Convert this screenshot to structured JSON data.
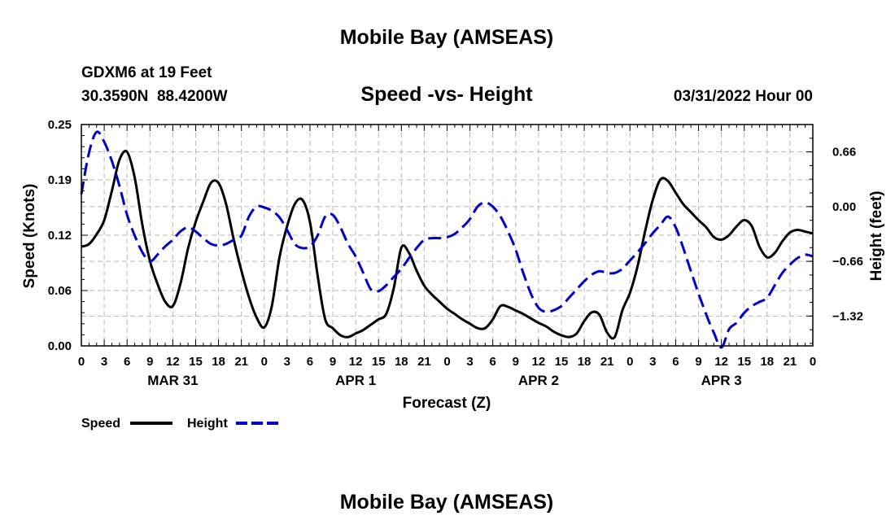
{
  "chart_data": {
    "type": "line",
    "title": "Mobile Bay (AMSEAS)",
    "footer_title": "Mobile Bay (AMSEAS)",
    "station": "GDXM6 at 19 Feet",
    "location": "30.3590N  88.4200W",
    "subtitle": "Speed -vs- Height",
    "datetime": "03/31/2022 Hour 00",
    "xlabel": "Forecast (Z)",
    "ylabel_left": "Speed (Knots)",
    "ylabel_right": "Height (feet)",
    "x_range_hours": [
      0,
      96
    ],
    "ylim_left": [
      0,
      0.25
    ],
    "ylim_right": [
      -1.68,
      0.99
    ],
    "yticks_left": [
      "0.00",
      "0.06",
      "0.12",
      "0.19",
      "0.25"
    ],
    "yticks_left_values": [
      0,
      0.0625,
      0.125,
      0.1875,
      0.25
    ],
    "yticks_right": [
      "0.66",
      "0.00",
      "−0.66",
      "−1.32"
    ],
    "yticks_right_values": [
      0.66,
      0,
      -0.66,
      -1.32
    ],
    "xticks": [
      "0",
      "3",
      "6",
      "9",
      "12",
      "15",
      "18",
      "21",
      "0",
      "3",
      "6",
      "9",
      "12",
      "15",
      "18",
      "21",
      "0",
      "3",
      "6",
      "9",
      "12",
      "15",
      "18",
      "21",
      "0",
      "3",
      "6",
      "9",
      "12",
      "15",
      "18",
      "21",
      "0"
    ],
    "day_labels": [
      {
        "label": "MAR 31",
        "hour": 12
      },
      {
        "label": "APR 1",
        "hour": 36
      },
      {
        "label": "APR 2",
        "hour": 60
      },
      {
        "label": "APR 3",
        "hour": 84
      }
    ],
    "series": [
      {
        "name": "Speed",
        "axis": "left",
        "color": "#000000",
        "dash": "solid",
        "x": [
          0,
          1,
          2,
          3,
          4,
          5,
          6,
          7,
          8,
          9,
          10,
          11,
          12,
          13,
          14,
          15,
          16,
          17,
          18,
          19,
          20,
          21,
          22,
          23,
          24,
          25,
          26,
          27,
          28,
          29,
          30,
          31,
          32,
          33,
          34,
          35,
          36,
          37,
          38,
          39,
          40,
          41,
          42,
          43,
          44,
          45,
          46,
          47,
          48,
          49,
          50,
          51,
          52,
          53,
          54,
          55,
          56,
          57,
          58,
          59,
          60,
          61,
          62,
          63,
          64,
          65,
          66,
          67,
          68,
          69,
          70,
          71,
          72,
          73,
          74,
          75,
          76,
          77,
          78,
          79,
          80,
          81,
          82,
          83,
          84,
          85,
          86,
          87,
          88,
          89,
          90,
          91,
          92,
          93,
          94,
          95,
          96
        ],
        "values": [
          0.112,
          0.115,
          0.126,
          0.142,
          0.175,
          0.21,
          0.219,
          0.19,
          0.137,
          0.096,
          0.07,
          0.05,
          0.045,
          0.07,
          0.11,
          0.14,
          0.163,
          0.184,
          0.184,
          0.16,
          0.12,
          0.085,
          0.055,
          0.032,
          0.021,
          0.045,
          0.1,
          0.135,
          0.16,
          0.165,
          0.14,
          0.08,
          0.03,
          0.02,
          0.012,
          0.01,
          0.014,
          0.018,
          0.024,
          0.03,
          0.036,
          0.065,
          0.111,
          0.105,
          0.085,
          0.068,
          0.058,
          0.05,
          0.042,
          0.036,
          0.03,
          0.025,
          0.02,
          0.02,
          0.03,
          0.045,
          0.044,
          0.04,
          0.036,
          0.031,
          0.026,
          0.022,
          0.016,
          0.012,
          0.01,
          0.014,
          0.028,
          0.038,
          0.035,
          0.015,
          0.01,
          0.04,
          0.06,
          0.09,
          0.13,
          0.165,
          0.188,
          0.186,
          0.173,
          0.16,
          0.151,
          0.142,
          0.134,
          0.123,
          0.12,
          0.125,
          0.135,
          0.142,
          0.135,
          0.112,
          0.1,
          0.105,
          0.118,
          0.128,
          0.131,
          0.129,
          0.127
        ]
      },
      {
        "name": "Height",
        "axis": "right",
        "color": "#0000cc",
        "dash": "dashed",
        "x": [
          0,
          1,
          2,
          3,
          4,
          5,
          6,
          7,
          8,
          9,
          10,
          11,
          12,
          13,
          14,
          15,
          16,
          17,
          18,
          19,
          20,
          21,
          22,
          23,
          24,
          25,
          26,
          27,
          28,
          29,
          30,
          31,
          32,
          33,
          34,
          35,
          36,
          37,
          38,
          39,
          40,
          41,
          42,
          43,
          44,
          45,
          46,
          47,
          48,
          49,
          50,
          51,
          52,
          53,
          54,
          55,
          56,
          57,
          58,
          59,
          60,
          61,
          62,
          63,
          64,
          65,
          66,
          67,
          68,
          69,
          70,
          71,
          72,
          73,
          74,
          75,
          76,
          77,
          78,
          79,
          80,
          81,
          82,
          83,
          84,
          85,
          86,
          87,
          88,
          89,
          90,
          91,
          92,
          93,
          94,
          95,
          96
        ],
        "values": [
          0.15,
          0.65,
          0.9,
          0.78,
          0.55,
          0.25,
          -0.1,
          -0.35,
          -0.55,
          -0.66,
          -0.58,
          -0.48,
          -0.4,
          -0.3,
          -0.25,
          -0.3,
          -0.38,
          -0.45,
          -0.47,
          -0.45,
          -0.4,
          -0.35,
          -0.12,
          0.0,
          -0.01,
          -0.05,
          -0.13,
          -0.28,
          -0.45,
          -0.5,
          -0.48,
          -0.35,
          -0.12,
          -0.1,
          -0.25,
          -0.45,
          -0.6,
          -0.8,
          -1.0,
          -1.02,
          -0.95,
          -0.85,
          -0.75,
          -0.62,
          -0.5,
          -0.4,
          -0.38,
          -0.38,
          -0.37,
          -0.33,
          -0.25,
          -0.15,
          0.0,
          0.05,
          0.0,
          -0.12,
          -0.3,
          -0.52,
          -0.8,
          -1.05,
          -1.22,
          -1.27,
          -1.25,
          -1.2,
          -1.1,
          -1.0,
          -0.9,
          -0.82,
          -0.78,
          -0.8,
          -0.8,
          -0.75,
          -0.65,
          -0.55,
          -0.44,
          -0.32,
          -0.22,
          -0.12,
          -0.25,
          -0.5,
          -0.78,
          -1.05,
          -1.3,
          -1.52,
          -1.7,
          -1.48,
          -1.4,
          -1.28,
          -1.2,
          -1.15,
          -1.1,
          -0.95,
          -0.8,
          -0.7,
          -0.62,
          -0.58,
          -0.6
        ]
      }
    ],
    "legend": [
      {
        "label": "Speed",
        "color": "#000000",
        "dash": "solid"
      },
      {
        "label": "Height",
        "color": "#0000cc",
        "dash": "dashed"
      }
    ],
    "legend_position": "bottom-left",
    "grid": true
  }
}
